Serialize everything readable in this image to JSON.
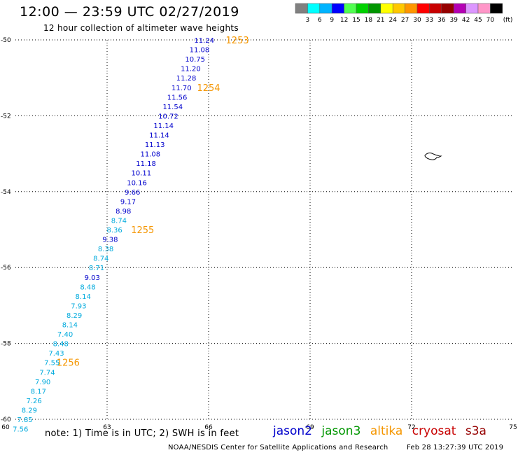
{
  "header": {
    "title": "12:00 — 23:59 UTC 02/27/2019",
    "subtitle": "12 hour collection of altimeter wave heights"
  },
  "legend": {
    "unit": "(ft)",
    "bins": [
      {
        "label": "3",
        "color": "#808080"
      },
      {
        "label": "6",
        "color": "#00ffff"
      },
      {
        "label": "9",
        "color": "#00b4ff"
      },
      {
        "label": "12",
        "color": "#0000ff"
      },
      {
        "label": "15",
        "color": "#50ff50"
      },
      {
        "label": "18",
        "color": "#00d200"
      },
      {
        "label": "21",
        "color": "#009600"
      },
      {
        "label": "24",
        "color": "#ffff00"
      },
      {
        "label": "27",
        "color": "#ffc800"
      },
      {
        "label": "30",
        "color": "#ff9600"
      },
      {
        "label": "33",
        "color": "#ff0000"
      },
      {
        "label": "36",
        "color": "#c80000"
      },
      {
        "label": "39",
        "color": "#960000"
      },
      {
        "label": "42",
        "color": "#b400b4"
      },
      {
        "label": "45",
        "color": "#dc96ff"
      },
      {
        "label": "70",
        "color": "#ff96c8"
      },
      {
        "label": "",
        "color": "#000000"
      }
    ]
  },
  "map": {
    "lon_range": [
      60,
      75
    ],
    "lat_range": [
      -60,
      -50
    ],
    "lon_ticks": [
      {
        "value": 60,
        "label": "60"
      },
      {
        "value": 63,
        "label": "63"
      },
      {
        "value": 66,
        "label": "66"
      },
      {
        "value": 69,
        "label": "69"
      },
      {
        "value": 72,
        "label": "72"
      },
      {
        "value": 75,
        "label": "75"
      }
    ],
    "lat_ticks": [
      {
        "value": -50,
        "label": "-50"
      },
      {
        "value": -52,
        "label": "-52"
      },
      {
        "value": -54,
        "label": "-54"
      },
      {
        "value": -56,
        "label": "-56"
      },
      {
        "value": -58,
        "label": "-58"
      },
      {
        "value": -60,
        "label": "-60"
      }
    ],
    "grid": true,
    "island_feature": "island-outline-icon",
    "colors": {
      "blue": "#0000cc",
      "cyan": "#00aadd",
      "orange": "#f59600"
    }
  },
  "chart_data": {
    "type": "scatter",
    "title": "12:00 — 23:59 UTC 02/27/2019",
    "subtitle": "12 hour collection of altimeter wave heights",
    "xlabel": "",
    "ylabel": "",
    "xlim": [
      60,
      75
    ],
    "ylim": [
      -60,
      -50
    ],
    "series": [
      {
        "name": "jason2",
        "points": [
          {
            "lon": 65.87,
            "lat": -50.0,
            "swh": "11.24",
            "color": "#0000cc"
          },
          {
            "lon": 65.73,
            "lat": -50.25,
            "swh": "11.08",
            "color": "#0000cc"
          },
          {
            "lon": 65.6,
            "lat": -50.5,
            "swh": "10.75",
            "color": "#0000cc"
          },
          {
            "lon": 65.47,
            "lat": -50.75,
            "swh": "11.20",
            "color": "#0000cc"
          },
          {
            "lon": 65.34,
            "lat": -51.0,
            "swh": "11.28",
            "color": "#0000cc"
          },
          {
            "lon": 65.2,
            "lat": -51.25,
            "swh": "11.70",
            "color": "#0000cc"
          },
          {
            "lon": 65.07,
            "lat": -51.5,
            "swh": "11.56",
            "color": "#0000cc"
          },
          {
            "lon": 64.94,
            "lat": -51.75,
            "swh": "11.54",
            "color": "#0000cc"
          },
          {
            "lon": 64.81,
            "lat": -52.0,
            "swh": "10.72",
            "color": "#0000cc"
          },
          {
            "lon": 64.67,
            "lat": -52.25,
            "swh": "11.14",
            "color": "#0000cc"
          },
          {
            "lon": 64.54,
            "lat": -52.5,
            "swh": "11.14",
            "color": "#0000cc"
          },
          {
            "lon": 64.41,
            "lat": -52.75,
            "swh": "11.13",
            "color": "#0000cc"
          },
          {
            "lon": 64.28,
            "lat": -53.0,
            "swh": "11.08",
            "color": "#0000cc"
          },
          {
            "lon": 64.15,
            "lat": -53.25,
            "swh": "11.18",
            "color": "#0000cc"
          },
          {
            "lon": 64.01,
            "lat": -53.5,
            "swh": "10.11",
            "color": "#0000cc"
          },
          {
            "lon": 63.88,
            "lat": -53.75,
            "swh": "10.16",
            "color": "#0000cc"
          },
          {
            "lon": 63.75,
            "lat": -54.0,
            "swh": "9.66",
            "color": "#0000cc"
          },
          {
            "lon": 63.62,
            "lat": -54.25,
            "swh": "9.17",
            "color": "#0000cc"
          },
          {
            "lon": 63.48,
            "lat": -54.5,
            "swh": "8.98",
            "color": "#0000cc"
          },
          {
            "lon": 63.35,
            "lat": -54.75,
            "swh": "8.74",
            "color": "#00aadd"
          },
          {
            "lon": 63.22,
            "lat": -55.0,
            "swh": "8.36",
            "color": "#00aadd"
          },
          {
            "lon": 63.09,
            "lat": -55.25,
            "swh": "9.38",
            "color": "#0000cc"
          },
          {
            "lon": 62.96,
            "lat": -55.5,
            "swh": "8.38",
            "color": "#00aadd"
          },
          {
            "lon": 62.82,
            "lat": -55.75,
            "swh": "8.74",
            "color": "#00aadd"
          },
          {
            "lon": 62.69,
            "lat": -56.0,
            "swh": "8.71",
            "color": "#00aadd"
          },
          {
            "lon": 62.56,
            "lat": -56.25,
            "swh": "9.03",
            "color": "#0000cc"
          },
          {
            "lon": 62.43,
            "lat": -56.5,
            "swh": "8.48",
            "color": "#00aadd"
          },
          {
            "lon": 62.29,
            "lat": -56.75,
            "swh": "8.14",
            "color": "#00aadd"
          },
          {
            "lon": 62.16,
            "lat": -57.0,
            "swh": "7.93",
            "color": "#00aadd"
          },
          {
            "lon": 62.03,
            "lat": -57.25,
            "swh": "8.29",
            "color": "#00aadd"
          },
          {
            "lon": 61.9,
            "lat": -57.5,
            "swh": "8.14",
            "color": "#00aadd"
          },
          {
            "lon": 61.76,
            "lat": -57.75,
            "swh": "7.40",
            "color": "#00aadd"
          },
          {
            "lon": 61.63,
            "lat": -58.0,
            "swh": "8.48",
            "color": "#00aadd"
          },
          {
            "lon": 61.5,
            "lat": -58.25,
            "swh": "7.43",
            "color": "#00aadd"
          },
          {
            "lon": 61.37,
            "lat": -58.5,
            "swh": "7.55",
            "color": "#00aadd"
          },
          {
            "lon": 61.23,
            "lat": -58.75,
            "swh": "7.74",
            "color": "#00aadd"
          },
          {
            "lon": 61.1,
            "lat": -59.0,
            "swh": "7.90",
            "color": "#00aadd"
          },
          {
            "lon": 60.97,
            "lat": -59.25,
            "swh": "8.17",
            "color": "#00aadd"
          },
          {
            "lon": 60.84,
            "lat": -59.5,
            "swh": "7.26",
            "color": "#00aadd"
          },
          {
            "lon": 60.7,
            "lat": -59.75,
            "swh": "8.29",
            "color": "#00aadd"
          },
          {
            "lon": 60.57,
            "lat": -60.0,
            "swh": "7.85",
            "color": "#00aadd"
          },
          {
            "lon": 60.44,
            "lat": -60.25,
            "swh": "7.56",
            "color": "#00aadd"
          }
        ]
      }
    ],
    "time_labels": [
      {
        "lon": 66.85,
        "lat": -50.0,
        "text": "1253"
      },
      {
        "lon": 66.0,
        "lat": -51.25,
        "text": "1254"
      },
      {
        "lon": 64.05,
        "lat": -55.0,
        "text": "1255"
      },
      {
        "lon": 61.85,
        "lat": -58.5,
        "text": "1256"
      }
    ]
  },
  "footer": {
    "note": "note:  1) Time is in UTC;  2) SWH is in feet",
    "satellites": [
      {
        "name": "jason2",
        "color": "#0000cc"
      },
      {
        "name": "jason3",
        "color": "#009600"
      },
      {
        "name": "altika",
        "color": "#f59600"
      },
      {
        "name": "cryosat",
        "color": "#c80000"
      },
      {
        "name": "s3a",
        "color": "#960000"
      }
    ],
    "credit": "NOAA/NESDIS Center for Satellite Applications and Research",
    "timestamp": "Feb 28 13:27:39 UTC 2019"
  }
}
